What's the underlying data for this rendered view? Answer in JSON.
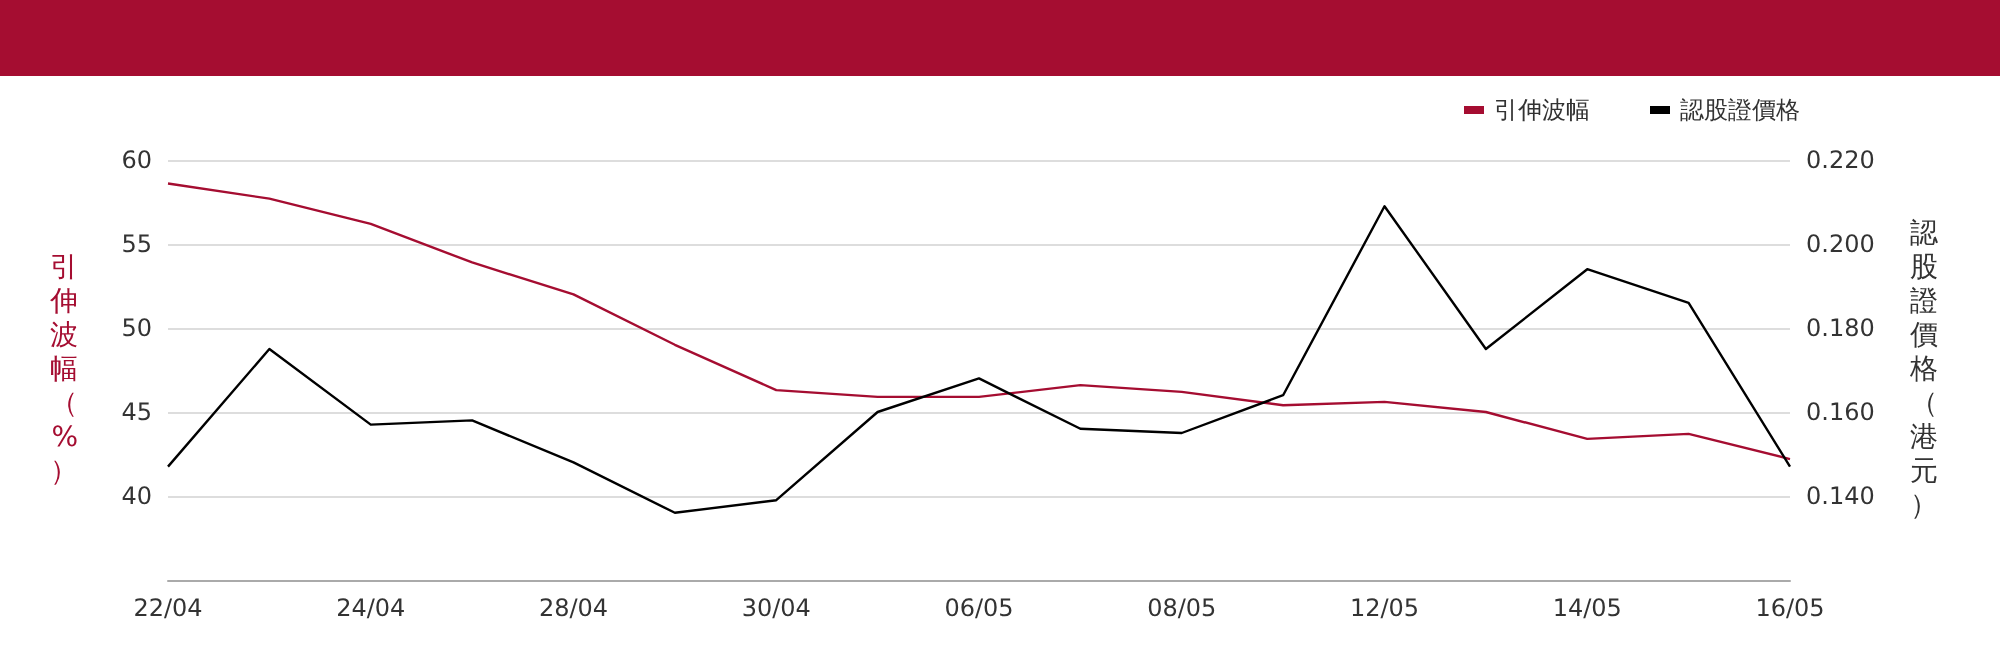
{
  "chart_data": {
    "type": "line",
    "ylabel": "引伸波幅（%）",
    "y2label": "認股證價格（港元）",
    "categories": [
      "22/04",
      null,
      "24/04",
      null,
      "28/04",
      null,
      "30/04",
      null,
      "06/05",
      null,
      "08/05",
      null,
      "12/05",
      null,
      "14/05",
      null,
      "16/05"
    ],
    "series": [
      {
        "name": "引伸波幅",
        "color": "#a50d31",
        "values": [
          58.6,
          57.7,
          56.2,
          53.9,
          52.0,
          49.0,
          46.3,
          45.9,
          45.9,
          46.6,
          46.2,
          45.4,
          45.6,
          45.0,
          43.4,
          43.7,
          42.2
        ]
      },
      {
        "name": "認股證價格",
        "color": "#000000",
        "axis": "y2",
        "values": [
          0.147,
          0.175,
          0.157,
          0.158,
          0.148,
          0.136,
          0.139,
          0.16,
          0.168,
          0.156,
          0.155,
          0.164,
          0.209,
          0.175,
          0.194,
          0.186,
          0.147
        ]
      }
    ],
    "ylim": [
      35,
      60
    ],
    "yticks": [
      40,
      45,
      50,
      55,
      60
    ],
    "y2lim": [
      0.12,
      0.22
    ],
    "y2ticks": [
      {
        "value": 0.14,
        "label": "0.140"
      },
      {
        "value": 0.16,
        "label": "0.160"
      },
      {
        "value": 0.18,
        "label": "0.180"
      },
      {
        "value": 0.2,
        "label": "0.200"
      },
      {
        "value": 0.22,
        "label": "0.220"
      }
    ],
    "grid": "y",
    "legend": "top right",
    "marker": "none",
    "line_style": "solid"
  }
}
